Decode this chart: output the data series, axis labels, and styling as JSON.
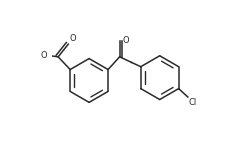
{
  "background_color": "#ffffff",
  "line_color": "#2a2a2a",
  "line_width": 1.1,
  "text_color": "#2a2a2a",
  "font_size": 6.0,
  "figsize": [
    2.46,
    1.44
  ],
  "dpi": 100,
  "b1cx": 0.26,
  "b1cy": 0.44,
  "b1r": 0.155,
  "b2cx": 0.76,
  "b2cy": 0.46,
  "b2r": 0.155,
  "xlim": [
    0,
    1
  ],
  "ylim": [
    0,
    1
  ]
}
